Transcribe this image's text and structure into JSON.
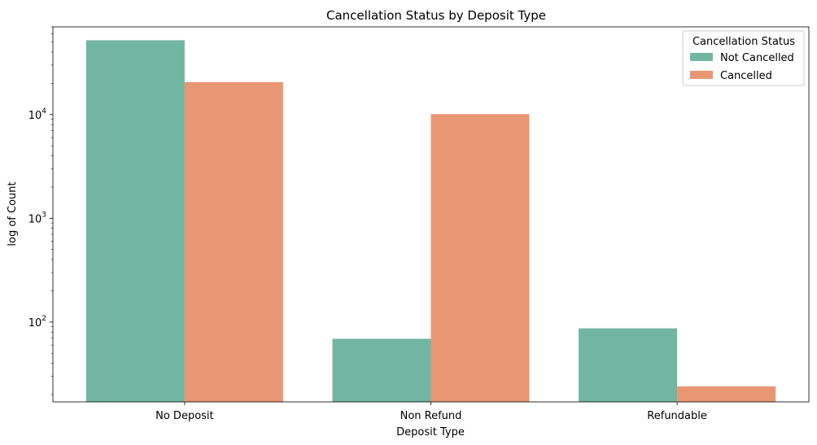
{
  "chart_data": {
    "type": "bar",
    "title": "Cancellation Status by Deposit Type",
    "xlabel": "Deposit Type",
    "ylabel": "log of Count",
    "yscale": "log",
    "ylim": [
      17,
      70000
    ],
    "y_ticks": [
      {
        "value": 100,
        "base": "10",
        "exp": "2"
      },
      {
        "value": 1000,
        "base": "10",
        "exp": "3"
      },
      {
        "value": 10000,
        "base": "10",
        "exp": "4"
      }
    ],
    "categories": [
      "No Deposit",
      "Non Refund",
      "Refundable"
    ],
    "series": [
      {
        "name": "Not Cancelled",
        "color": "#72b6a1",
        "values": [
          52000,
          69,
          87
        ]
      },
      {
        "name": "Cancelled",
        "color": "#e99675",
        "values": [
          20500,
          10100,
          24
        ]
      }
    ],
    "legend": {
      "title": "Cancellation Status",
      "position": "top-right"
    },
    "grid": false
  }
}
